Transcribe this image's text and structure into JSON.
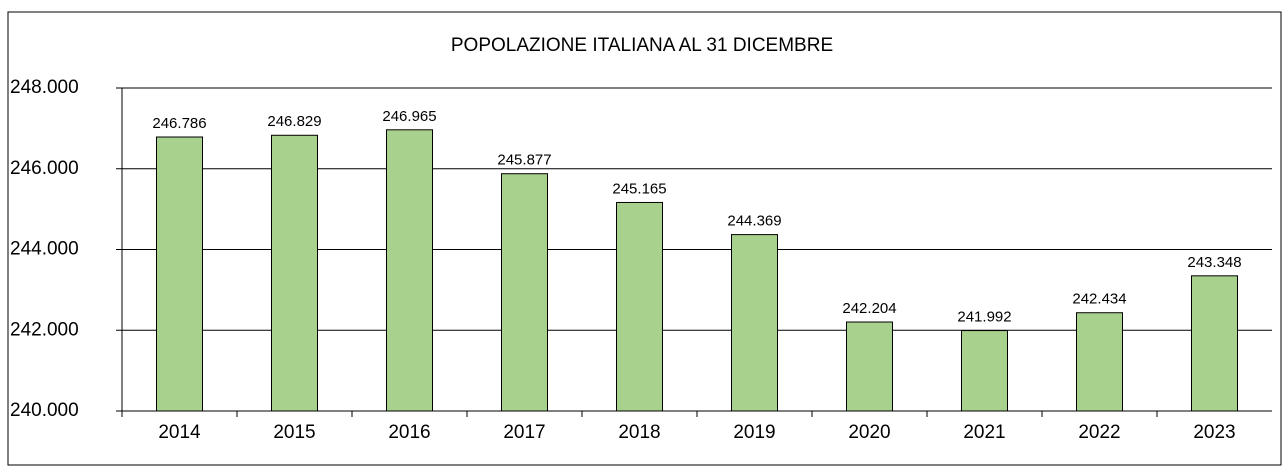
{
  "chart_data": {
    "type": "bar",
    "title": "POPOLAZIONE ITALIANA AL 31 DICEMBRE",
    "categories": [
      "2014",
      "2015",
      "2016",
      "2017",
      "2018",
      "2019",
      "2020",
      "2021",
      "2022",
      "2023"
    ],
    "values": [
      246786,
      246829,
      246965,
      245877,
      245165,
      244369,
      242204,
      241992,
      242434,
      243348
    ],
    "value_labels": [
      "246.786",
      "246.829",
      "246.965",
      "245.877",
      "245.165",
      "244.369",
      "242.204",
      "241.992",
      "242.434",
      "243.348"
    ],
    "color": "#a9d18e",
    "ylim": [
      240000,
      248000
    ],
    "yticks": [
      {
        "value": 240000,
        "label": "240.000"
      },
      {
        "value": 242000,
        "label": "242.000"
      },
      {
        "value": 244000,
        "label": "244.000"
      },
      {
        "value": 246000,
        "label": "246.000"
      },
      {
        "value": 248000,
        "label": "248.000"
      }
    ],
    "grid": true
  }
}
